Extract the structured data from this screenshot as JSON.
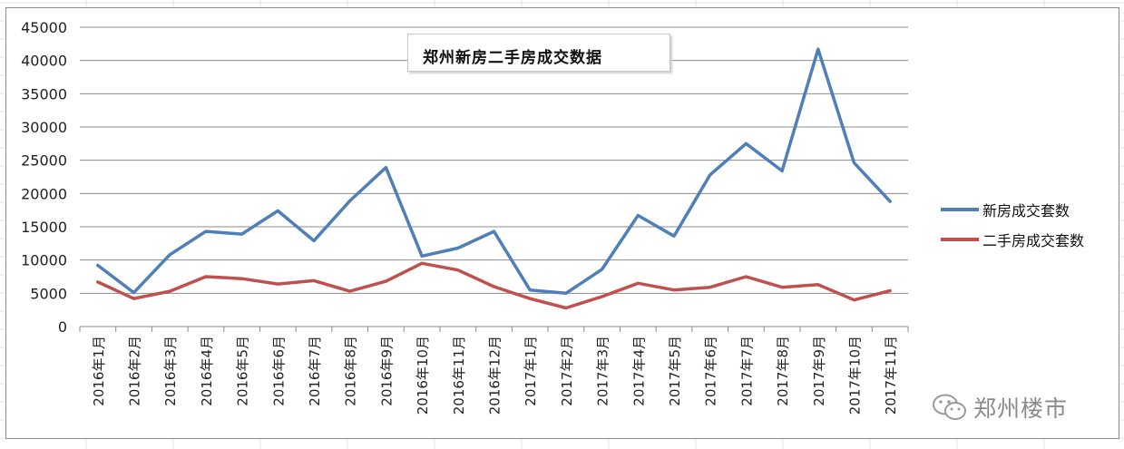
{
  "chart_data": {
    "type": "line",
    "title": "郑州新房二手房成交数据",
    "categories": [
      "2016年1月",
      "2016年2月",
      "2016年3月",
      "2016年4月",
      "2016年5月",
      "2016年6月",
      "2016年7月",
      "2016年8月",
      "2016年9月",
      "2016年10月",
      "2016年11月",
      "2016年12月",
      "2017年1月",
      "2017年2月",
      "2017年3月",
      "2017年4月",
      "2017年5月",
      "2017年6月",
      "2017年7月",
      "2017年8月",
      "2017年9月",
      "2017年10月",
      "2017年11月"
    ],
    "series": [
      {
        "name": "新房成交套数",
        "color": "#4f7fb8",
        "values": [
          9200,
          5100,
          10800,
          14300,
          13900,
          17400,
          12900,
          18900,
          23900,
          10600,
          11800,
          14300,
          5500,
          5000,
          8600,
          16700,
          13600,
          22800,
          27500,
          23400,
          41700,
          24600,
          18800
        ]
      },
      {
        "name": "二手房成交套数",
        "color": "#c0504d",
        "values": [
          6700,
          4200,
          5300,
          7500,
          7200,
          6400,
          6900,
          5300,
          6800,
          9500,
          8500,
          6000,
          4200,
          2800,
          4500,
          6500,
          5500,
          5900,
          7500,
          5900,
          6300,
          4000,
          5400
        ]
      }
    ],
    "ylim": [
      0,
      45000
    ],
    "yticks": [
      0,
      5000,
      10000,
      15000,
      20000,
      25000,
      30000,
      35000,
      40000,
      45000
    ],
    "grid": true,
    "legend_position": "right"
  },
  "watermark": {
    "text": "郑州楼市",
    "icon": "wechat-icon"
  }
}
